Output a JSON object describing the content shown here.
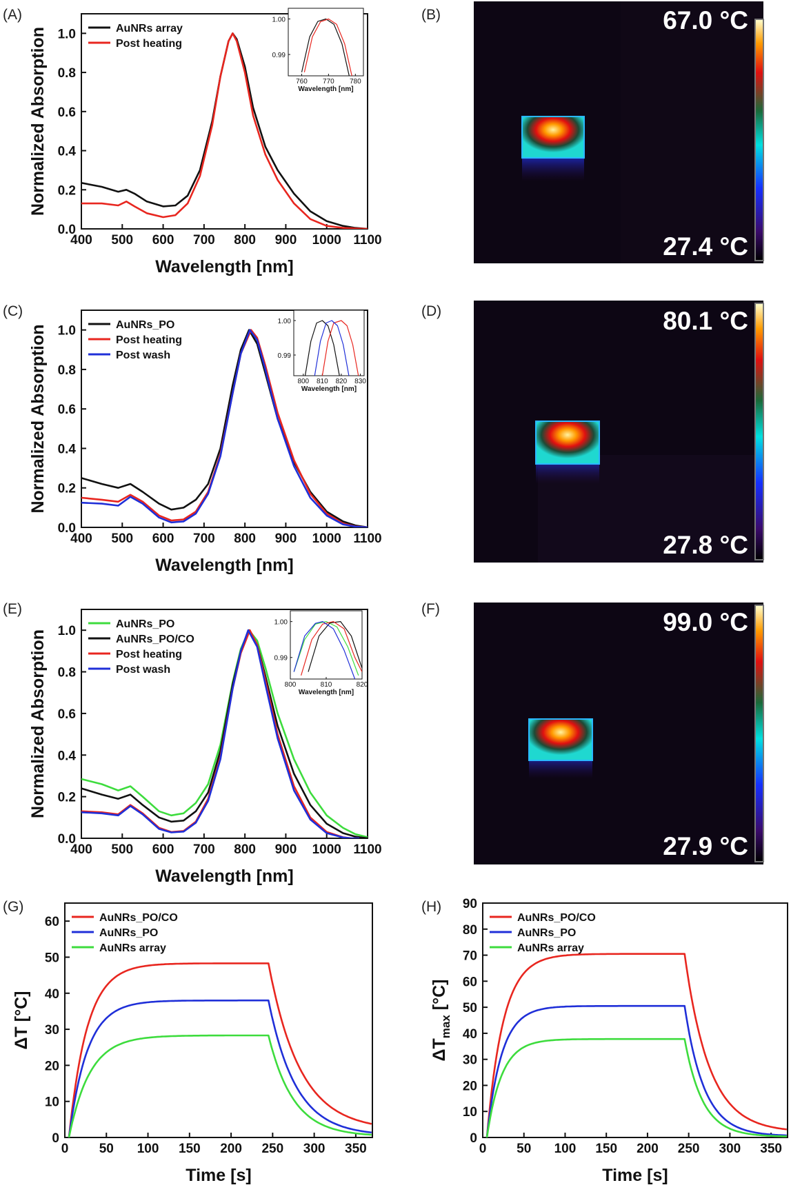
{
  "panels": {
    "A": {
      "label": "(A)"
    },
    "B": {
      "label": "(B)"
    },
    "C": {
      "label": "(C)"
    },
    "D": {
      "label": "(D)"
    },
    "E": {
      "label": "(E)"
    },
    "F": {
      "label": "(F)"
    },
    "G": {
      "label": "(G)"
    },
    "H": {
      "label": "(H)"
    }
  },
  "thermal_images": [
    {
      "panel": "B",
      "max_label": "67.0 °C",
      "min_label": "27.4 °C"
    },
    {
      "panel": "D",
      "max_label": "80.1 °C",
      "min_label": "27.8 °C"
    },
    {
      "panel": "F",
      "max_label": "99.0 °C",
      "min_label": "27.9 °C"
    }
  ],
  "colors": {
    "black": "#111111",
    "red": "#e8261f",
    "blue": "#1f2fd8",
    "green": "#3ddc3d",
    "thermal_bg": "#0d0614"
  },
  "chart_data": [
    {
      "panel": "A",
      "type": "line",
      "xlabel": "Wavelength [nm]",
      "ylabel": "Normalized Absorption",
      "xlim": [
        400,
        1100
      ],
      "ylim": [
        0,
        1.1
      ],
      "xticks": [
        400,
        500,
        600,
        700,
        800,
        900,
        1000,
        1100
      ],
      "yticks": [
        0.0,
        0.2,
        0.4,
        0.6,
        0.8,
        1.0
      ],
      "legend": "top-left",
      "series": [
        {
          "name": "AuNRs array",
          "color": "#111111",
          "x": [
            400,
            450,
            490,
            510,
            530,
            560,
            600,
            630,
            660,
            690,
            720,
            740,
            760,
            770,
            780,
            800,
            820,
            850,
            880,
            920,
            960,
            1000,
            1040,
            1070,
            1100
          ],
          "y": [
            0.235,
            0.215,
            0.19,
            0.2,
            0.18,
            0.14,
            0.115,
            0.12,
            0.17,
            0.3,
            0.55,
            0.78,
            0.96,
            1.0,
            0.97,
            0.83,
            0.62,
            0.42,
            0.3,
            0.18,
            0.09,
            0.04,
            0.015,
            0.005,
            0.0
          ]
        },
        {
          "name": "Post heating",
          "color": "#e8261f",
          "x": [
            400,
            450,
            490,
            510,
            530,
            560,
            600,
            630,
            660,
            690,
            720,
            740,
            760,
            770,
            780,
            800,
            820,
            850,
            880,
            920,
            960,
            1000,
            1040,
            1070,
            1100
          ],
          "y": [
            0.13,
            0.13,
            0.12,
            0.14,
            0.115,
            0.08,
            0.06,
            0.07,
            0.13,
            0.27,
            0.53,
            0.78,
            0.96,
            1.0,
            0.96,
            0.8,
            0.58,
            0.38,
            0.25,
            0.13,
            0.05,
            0.015,
            0.005,
            0.002,
            0.0
          ]
        }
      ],
      "inset": {
        "xlabel": "Wavelength [nm]",
        "xlim": [
          755,
          783
        ],
        "ylim": [
          0.984,
          1.003
        ],
        "xticks": [
          760,
          770,
          780
        ],
        "yticks": [
          0.99,
          1.0
        ],
        "ytick_labels": [
          "0.99",
          "1.00"
        ],
        "series": [
          {
            "name": "AuNRs array",
            "color": "#111111",
            "x": [
              760,
              763,
              766,
              769,
              772,
              775,
              778
            ],
            "y": [
              0.985,
              0.995,
              0.9993,
              1.0,
              0.9985,
              0.993,
              0.983
            ]
          },
          {
            "name": "Post heating",
            "color": "#e8261f",
            "x": [
              761,
              764,
              767,
              770,
              773,
              776,
              779
            ],
            "y": [
              0.985,
              0.995,
              0.9992,
              1.0,
              0.9985,
              0.993,
              0.983
            ]
          }
        ]
      }
    },
    {
      "panel": "C",
      "type": "line",
      "xlabel": "Wavelength [nm]",
      "ylabel": "Normalized Absorption",
      "xlim": [
        400,
        1100
      ],
      "ylim": [
        0,
        1.1
      ],
      "xticks": [
        400,
        500,
        600,
        700,
        800,
        900,
        1000,
        1100
      ],
      "yticks": [
        0.0,
        0.2,
        0.4,
        0.6,
        0.8,
        1.0
      ],
      "legend": "top-left",
      "series": [
        {
          "name": "AuNRs_PO",
          "color": "#111111",
          "x": [
            400,
            450,
            490,
            520,
            550,
            590,
            620,
            650,
            680,
            710,
            740,
            770,
            790,
            810,
            830,
            850,
            880,
            920,
            960,
            1000,
            1040,
            1070,
            1100
          ],
          "y": [
            0.25,
            0.22,
            0.2,
            0.22,
            0.18,
            0.12,
            0.09,
            0.1,
            0.14,
            0.22,
            0.4,
            0.72,
            0.9,
            1.0,
            0.93,
            0.78,
            0.55,
            0.33,
            0.18,
            0.08,
            0.03,
            0.01,
            0.0
          ]
        },
        {
          "name": "Post heating",
          "color": "#e8261f",
          "x": [
            400,
            450,
            490,
            520,
            550,
            590,
            620,
            650,
            680,
            710,
            740,
            770,
            790,
            815,
            830,
            850,
            880,
            920,
            960,
            1000,
            1040,
            1070,
            1100
          ],
          "y": [
            0.15,
            0.14,
            0.13,
            0.165,
            0.13,
            0.06,
            0.035,
            0.04,
            0.08,
            0.18,
            0.37,
            0.68,
            0.88,
            1.0,
            0.96,
            0.82,
            0.58,
            0.34,
            0.17,
            0.07,
            0.02,
            0.005,
            0.0
          ]
        },
        {
          "name": "Post wash",
          "color": "#1f2fd8",
          "x": [
            400,
            450,
            490,
            520,
            550,
            590,
            620,
            650,
            680,
            710,
            740,
            770,
            790,
            812,
            830,
            850,
            880,
            920,
            960,
            1000,
            1040,
            1070,
            1100
          ],
          "y": [
            0.125,
            0.12,
            0.11,
            0.155,
            0.12,
            0.05,
            0.025,
            0.03,
            0.07,
            0.17,
            0.36,
            0.68,
            0.88,
            1.0,
            0.95,
            0.8,
            0.55,
            0.31,
            0.15,
            0.06,
            0.015,
            0.004,
            0.0
          ]
        }
      ],
      "inset": {
        "xlabel": "Wavelength [nm]",
        "xlim": [
          795,
          832
        ],
        "ylim": [
          0.984,
          1.003
        ],
        "xticks": [
          800,
          810,
          820,
          830
        ],
        "yticks": [
          0.99,
          1.0
        ],
        "ytick_labels": [
          "0.99",
          "1.00"
        ],
        "series": [
          {
            "name": "AuNRs_PO",
            "color": "#111111",
            "x": [
              801,
              804,
              807,
              810,
              813,
              816,
              819
            ],
            "y": [
              0.984,
              0.994,
              0.9993,
              1.0,
              0.9985,
              0.993,
              0.984
            ]
          },
          {
            "name": "Post heating",
            "color": "#e8261f",
            "x": [
              810,
              813,
              816,
              820,
              823,
              826,
              829
            ],
            "y": [
              0.984,
              0.994,
              0.9993,
              1.0,
              0.9985,
              0.993,
              0.984
            ]
          },
          {
            "name": "Post wash",
            "color": "#1f2fd8",
            "x": [
              806,
              809,
              812,
              815,
              818,
              821,
              824
            ],
            "y": [
              0.984,
              0.994,
              0.9993,
              1.0,
              0.9985,
              0.993,
              0.984
            ]
          }
        ]
      }
    },
    {
      "panel": "E",
      "type": "line",
      "xlabel": "Wavelength [nm]",
      "ylabel": "Normalized Absorption",
      "xlim": [
        400,
        1100
      ],
      "ylim": [
        0,
        1.1
      ],
      "xticks": [
        400,
        500,
        600,
        700,
        800,
        900,
        1000,
        1100
      ],
      "yticks": [
        0.0,
        0.2,
        0.4,
        0.6,
        0.8,
        1.0
      ],
      "legend": "top-left",
      "series": [
        {
          "name": "AuNRs_PO",
          "color": "#3ddc3d",
          "x": [
            400,
            450,
            490,
            520,
            550,
            590,
            620,
            650,
            680,
            710,
            740,
            770,
            790,
            810,
            830,
            850,
            880,
            920,
            960,
            1000,
            1040,
            1070,
            1100
          ],
          "y": [
            0.285,
            0.26,
            0.23,
            0.25,
            0.2,
            0.13,
            0.11,
            0.12,
            0.17,
            0.26,
            0.45,
            0.75,
            0.91,
            1.0,
            0.95,
            0.82,
            0.6,
            0.38,
            0.22,
            0.11,
            0.05,
            0.02,
            0.005
          ]
        },
        {
          "name": "AuNRs_PO/CO",
          "color": "#111111",
          "x": [
            400,
            450,
            490,
            520,
            550,
            590,
            620,
            650,
            680,
            710,
            740,
            770,
            790,
            810,
            830,
            850,
            880,
            920,
            960,
            1000,
            1040,
            1070,
            1100
          ],
          "y": [
            0.24,
            0.21,
            0.19,
            0.21,
            0.16,
            0.1,
            0.08,
            0.085,
            0.13,
            0.22,
            0.42,
            0.74,
            0.9,
            1.0,
            0.93,
            0.78,
            0.54,
            0.31,
            0.16,
            0.07,
            0.025,
            0.008,
            0.0
          ]
        },
        {
          "name": "Post heating",
          "color": "#e8261f",
          "x": [
            400,
            450,
            490,
            520,
            550,
            590,
            620,
            650,
            680,
            710,
            740,
            770,
            790,
            812,
            830,
            850,
            880,
            920,
            960,
            1000,
            1040,
            1060,
            1080
          ],
          "y": [
            0.13,
            0.125,
            0.115,
            0.16,
            0.12,
            0.05,
            0.03,
            0.035,
            0.08,
            0.19,
            0.39,
            0.72,
            0.89,
            1.0,
            0.93,
            0.76,
            0.5,
            0.25,
            0.1,
            0.03,
            0.005,
            0.0,
            0.0
          ]
        },
        {
          "name": "Post wash",
          "color": "#1f2fd8",
          "x": [
            400,
            450,
            490,
            520,
            550,
            590,
            620,
            650,
            680,
            710,
            740,
            770,
            790,
            808,
            830,
            850,
            880,
            920,
            960,
            1000,
            1040,
            1060,
            1080
          ],
          "y": [
            0.125,
            0.12,
            0.11,
            0.155,
            0.115,
            0.045,
            0.028,
            0.032,
            0.075,
            0.18,
            0.38,
            0.72,
            0.9,
            1.0,
            0.92,
            0.74,
            0.48,
            0.23,
            0.09,
            0.025,
            0.004,
            0.0,
            0.0
          ]
        }
      ],
      "inset": {
        "xlabel": "Wavelength [nm]",
        "xlim": [
          800,
          820
        ],
        "ylim": [
          0.984,
          1.003
        ],
        "xticks": [
          800,
          810,
          820
        ],
        "yticks": [
          0.99,
          1.0
        ],
        "ytick_labels": [
          "0.99",
          "1.00"
        ],
        "series": [
          {
            "name": "AuNRs_PO",
            "color": "#3ddc3d",
            "x": [
              801,
              804,
              807,
              810,
              813,
              816,
              819
            ],
            "y": [
              0.986,
              0.995,
              0.9993,
              1.0,
              0.9985,
              0.993,
              0.985
            ]
          },
          {
            "name": "AuNRs_PO/CO",
            "color": "#111111",
            "x": [
              805,
              808,
              811,
              814,
              817,
              820
            ],
            "y": [
              0.986,
              0.996,
              0.9996,
              1.0,
              0.996,
              0.987
            ]
          },
          {
            "name": "Post heating",
            "color": "#e8261f",
            "x": [
              803,
              806,
              809,
              812,
              815,
              818,
              820
            ],
            "y": [
              0.985,
              0.995,
              0.9993,
              1.0,
              0.998,
              0.99,
              0.986
            ]
          },
          {
            "name": "Post wash",
            "color": "#1f2fd8",
            "x": [
              801,
              804,
              807,
              809,
              812,
              815,
              818
            ],
            "y": [
              0.986,
              0.996,
              0.9995,
              1.0,
              0.998,
              0.992,
              0.984
            ]
          }
        ]
      }
    },
    {
      "panel": "G",
      "type": "line",
      "xlabel": "Time [s]",
      "ylabel": "ΔT [°C]",
      "xlim": [
        0,
        370
      ],
      "ylim": [
        0,
        65
      ],
      "xticks": [
        0,
        50,
        100,
        150,
        200,
        250,
        300,
        350
      ],
      "yticks": [
        0,
        10,
        20,
        30,
        40,
        50,
        60
      ],
      "legend": "top-left",
      "series": [
        {
          "name": "AuNRs_PO/CO",
          "color": "#e8261f",
          "plateau": 48.3,
          "tau_rise": 22,
          "t_off": 245,
          "tau_fall": 38,
          "end": 2
        },
        {
          "name": "AuNRs_PO",
          "color": "#1f2fd8",
          "plateau": 38,
          "tau_rise": 22,
          "t_off": 245,
          "tau_fall": 33,
          "end": 0.5
        },
        {
          "name": "AuNRs array",
          "color": "#3ddc3d",
          "plateau": 28.3,
          "tau_rise": 25,
          "t_off": 245,
          "tau_fall": 30,
          "end": 0.3
        }
      ]
    },
    {
      "panel": "H",
      "type": "line",
      "xlabel": "Time [s]",
      "ylabel": "ΔT",
      "ylabel_sub": "max",
      "ylabel_unit": " [°C]",
      "xlim": [
        0,
        370
      ],
      "ylim": [
        0,
        90
      ],
      "xticks": [
        0,
        50,
        100,
        150,
        200,
        250,
        300,
        350
      ],
      "yticks": [
        0,
        10,
        20,
        30,
        40,
        50,
        60,
        70,
        80,
        90
      ],
      "legend": "top-left",
      "series": [
        {
          "name": "AuNRs_PO/CO",
          "color": "#e8261f",
          "plateau": 70.5,
          "tau_rise": 20,
          "t_off": 245,
          "tau_fall": 30,
          "end": 2
        },
        {
          "name": "AuNRs_PO",
          "color": "#1f2fd8",
          "plateau": 50.5,
          "tau_rise": 18,
          "t_off": 245,
          "tau_fall": 24,
          "end": 0.5
        },
        {
          "name": "AuNRs array",
          "color": "#3ddc3d",
          "plateau": 37.8,
          "tau_rise": 18,
          "t_off": 245,
          "tau_fall": 22,
          "end": 0.3
        }
      ]
    }
  ]
}
